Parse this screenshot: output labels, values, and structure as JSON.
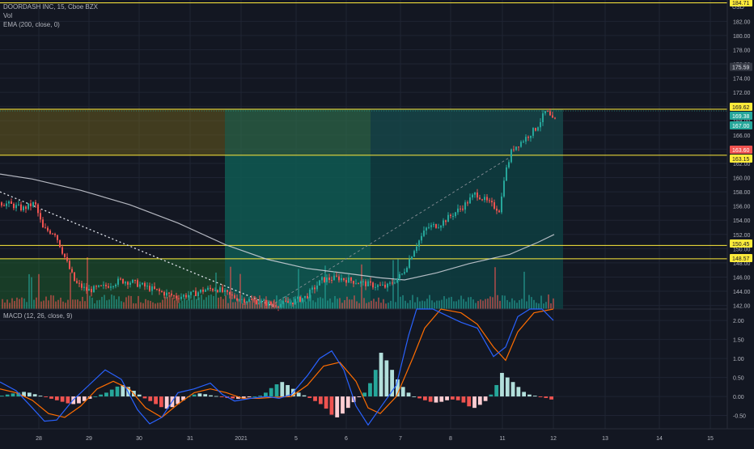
{
  "main_legend": {
    "symbol_line": "DOORDASH INC, 15, Cboe BZX",
    "vol_label": "Vol",
    "ema_label": "EMA (200, close, 0)"
  },
  "macd_legend": {
    "label": "MACD (12, 26, close, 9)"
  },
  "price_axis": {
    "currency": "USD",
    "ticks": [
      "182.00",
      "180.00",
      "178.00",
      "176.00",
      "174.00",
      "172.00",
      "170.00",
      "168.00",
      "166.00",
      "164.00",
      "162.00",
      "160.00",
      "158.00",
      "156.00",
      "154.00",
      "152.00",
      "150.00",
      "148.00",
      "146.00",
      "144.00",
      "142.00"
    ],
    "top_tag": "184.71",
    "last_price_tag": "175.59",
    "labels": [
      {
        "text": "169.62",
        "color": "#ffeb3b",
        "text_color": "#131722"
      },
      {
        "text": "169.38",
        "color": "#26a69a",
        "text_color": "#ffffff"
      },
      {
        "text": "167.00",
        "color": "#26a69a",
        "text_color": "#ffffff"
      },
      {
        "text": "163.60",
        "color": "#ef5350",
        "text_color": "#ffffff"
      },
      {
        "text": "163.15",
        "color": "#ffeb3b",
        "text_color": "#131722"
      },
      {
        "text": "150.45",
        "color": "#ffeb3b",
        "text_color": "#131722"
      },
      {
        "text": "148.57",
        "color": "#ffeb3b",
        "text_color": "#131722"
      }
    ]
  },
  "macd_axis": {
    "ticks": [
      "2.00",
      "1.50",
      "1.00",
      "0.50",
      "0.00",
      "-0.50"
    ]
  },
  "time_axis": {
    "labels": [
      "28",
      "29",
      "30",
      "31",
      "2021",
      "5",
      "6",
      "7",
      "8",
      "11",
      "12",
      "13",
      "14",
      "15"
    ]
  },
  "horizontal_levels": [
    169.62,
    163.15,
    150.45,
    148.57
  ],
  "colors": {
    "background": "#131722",
    "grid": "#1f2433",
    "up": "#26a69a",
    "down": "#ef5350",
    "ema": "#d1d4dc",
    "level_line": "#ffeb3b",
    "macd_line": "#2962ff",
    "signal_line": "#ff6d00",
    "hist_pos": "#b2dfdb",
    "hist_neg": "#ffcdd2"
  },
  "chart_data": {
    "type": "candlestick",
    "title": "DOORDASH INC, 15, Cboe BZX",
    "ylim": [
      141.5,
      185
    ],
    "macd_ylim": [
      -0.85,
      2.3
    ],
    "price_path": [
      [
        0,
        156.5
      ],
      [
        15,
        156.2
      ],
      [
        30,
        155.6
      ],
      [
        45,
        156.4
      ],
      [
        55,
        152.8
      ],
      [
        70,
        152.2
      ],
      [
        82,
        148.8
      ],
      [
        95,
        145.2
      ],
      [
        110,
        144.1
      ],
      [
        130,
        144.6
      ],
      [
        150,
        145.5
      ],
      [
        165,
        145.3
      ],
      [
        180,
        144.7
      ],
      [
        200,
        143.9
      ],
      [
        220,
        143.2
      ],
      [
        240,
        143.6
      ],
      [
        255,
        144.2
      ],
      [
        270,
        144.4
      ],
      [
        285,
        143.4
      ],
      [
        300,
        142.9
      ],
      [
        320,
        142.6
      ],
      [
        340,
        142.1
      ],
      [
        360,
        142.4
      ],
      [
        380,
        143.2
      ],
      [
        400,
        145.6
      ],
      [
        420,
        145.9
      ],
      [
        440,
        145.4
      ],
      [
        460,
        144.9
      ],
      [
        480,
        144.6
      ],
      [
        500,
        146.5
      ],
      [
        515,
        150.2
      ],
      [
        530,
        153.0
      ],
      [
        545,
        153.4
      ],
      [
        560,
        154.7
      ],
      [
        575,
        156.0
      ],
      [
        590,
        157.8
      ],
      [
        605,
        156.5
      ],
      [
        620,
        155.4
      ],
      [
        625,
        160.0
      ],
      [
        635,
        164.0
      ],
      [
        650,
        165.4
      ],
      [
        665,
        167.0
      ],
      [
        677,
        169.4
      ],
      [
        685,
        168.0
      ]
    ],
    "ema200_path": [
      [
        0,
        160.5
      ],
      [
        40,
        159.8
      ],
      [
        100,
        158.2
      ],
      [
        160,
        156.2
      ],
      [
        220,
        153.6
      ],
      [
        280,
        150.5
      ],
      [
        330,
        148.5
      ],
      [
        380,
        147.2
      ],
      [
        430,
        146.5
      ],
      [
        470,
        145.9
      ],
      [
        500,
        145.6
      ],
      [
        540,
        146.6
      ],
      [
        580,
        147.9
      ],
      [
        630,
        149.2
      ],
      [
        665,
        150.9
      ],
      [
        685,
        152.0
      ]
    ],
    "projection_line": [
      [
        335,
        142.0
      ],
      [
        635,
        163.2
      ]
    ],
    "descending_trendline": [
      [
        0,
        158.0
      ],
      [
        340,
        141.8
      ]
    ],
    "zones": [
      {
        "name": "upper-left",
        "x0": 0,
        "x1": 278,
        "top": 169.62,
        "bottom": 163.15,
        "fill": "#7a6a1c",
        "opacity": 0.45
      },
      {
        "name": "lower-left",
        "x0": 0,
        "x1": 278,
        "top": 148.57,
        "bottom": 141.5,
        "fill": "#1e6b2f",
        "opacity": 0.45
      },
      {
        "name": "long-target",
        "x0": 278,
        "x1": 458,
        "top": 169.62,
        "bottom": 163.15,
        "fill": "#2e6a48",
        "opacity": 0.7
      },
      {
        "name": "long-body",
        "x0": 278,
        "x1": 458,
        "top": 163.15,
        "bottom": 141.5,
        "fill": "#0f5a52",
        "opacity": 0.85
      },
      {
        "name": "long-target-right",
        "x0": 458,
        "x1": 696,
        "top": 169.62,
        "bottom": 163.15,
        "fill": "#17494b",
        "opacity": 0.8
      },
      {
        "name": "long-body-right",
        "x0": 458,
        "x1": 696,
        "top": 163.15,
        "bottom": 141.5,
        "fill": "#0e3e41",
        "opacity": 0.85
      }
    ],
    "macd_path": [
      [
        0,
        0.38
      ],
      [
        20,
        0.15
      ],
      [
        40,
        -0.3
      ],
      [
        55,
        -0.65
      ],
      [
        70,
        -0.62
      ],
      [
        90,
        -0.1
      ],
      [
        110,
        0.3
      ],
      [
        130,
        0.7
      ],
      [
        150,
        0.45
      ],
      [
        170,
        -0.35
      ],
      [
        185,
        -0.72
      ],
      [
        200,
        -0.55
      ],
      [
        220,
        0.1
      ],
      [
        240,
        0.2
      ],
      [
        260,
        0.35
      ],
      [
        275,
        0.05
      ],
      [
        290,
        -0.12
      ],
      [
        310,
        -0.05
      ],
      [
        330,
        0.0
      ],
      [
        345,
        -0.05
      ],
      [
        360,
        0.05
      ],
      [
        380,
        0.55
      ],
      [
        395,
        1.0
      ],
      [
        410,
        1.2
      ],
      [
        425,
        0.7
      ],
      [
        440,
        -0.25
      ],
      [
        455,
        -0.75
      ],
      [
        470,
        -0.3
      ],
      [
        490,
        0.3
      ],
      [
        505,
        1.6
      ],
      [
        515,
        2.3
      ],
      [
        535,
        2.3
      ],
      [
        555,
        2.1
      ],
      [
        570,
        1.95
      ],
      [
        590,
        1.8
      ],
      [
        610,
        1.05
      ],
      [
        625,
        1.3
      ],
      [
        640,
        2.1
      ],
      [
        655,
        2.3
      ],
      [
        670,
        2.3
      ],
      [
        684,
        2.0
      ]
    ],
    "signal_path": [
      [
        0,
        0.2
      ],
      [
        20,
        0.1
      ],
      [
        40,
        -0.1
      ],
      [
        60,
        -0.45
      ],
      [
        80,
        -0.55
      ],
      [
        100,
        -0.25
      ],
      [
        120,
        0.2
      ],
      [
        140,
        0.4
      ],
      [
        160,
        0.2
      ],
      [
        180,
        -0.3
      ],
      [
        200,
        -0.55
      ],
      [
        220,
        -0.2
      ],
      [
        240,
        0.1
      ],
      [
        260,
        0.2
      ],
      [
        280,
        0.1
      ],
      [
        300,
        -0.05
      ],
      [
        320,
        -0.05
      ],
      [
        340,
        -0.02
      ],
      [
        360,
        0.0
      ],
      [
        380,
        0.3
      ],
      [
        400,
        0.8
      ],
      [
        420,
        0.9
      ],
      [
        440,
        0.4
      ],
      [
        455,
        -0.3
      ],
      [
        470,
        -0.45
      ],
      [
        490,
        0.0
      ],
      [
        510,
        1.0
      ],
      [
        525,
        1.8
      ],
      [
        545,
        2.3
      ],
      [
        570,
        2.2
      ],
      [
        590,
        1.9
      ],
      [
        610,
        1.3
      ],
      [
        625,
        0.95
      ],
      [
        640,
        1.7
      ],
      [
        660,
        2.2
      ],
      [
        684,
        2.3
      ]
    ],
    "histogram_series": [
      0.02,
      0.05,
      0.08,
      0.1,
      0.12,
      0.1,
      0.06,
      0.02,
      -0.02,
      -0.06,
      -0.1,
      -0.14,
      -0.18,
      -0.2,
      -0.18,
      -0.12,
      -0.06,
      0.0,
      0.05,
      0.1,
      0.18,
      0.26,
      0.3,
      0.25,
      0.15,
      0.05,
      -0.05,
      -0.12,
      -0.2,
      -0.28,
      -0.32,
      -0.28,
      -0.2,
      -0.1,
      0.0,
      0.05,
      0.08,
      0.06,
      0.03,
      0.01,
      -0.02,
      -0.04,
      -0.05,
      -0.06,
      -0.04,
      -0.02,
      0.0,
      0.02,
      0.1,
      0.22,
      0.32,
      0.38,
      0.3,
      0.2,
      0.1,
      0.03,
      -0.04,
      -0.12,
      -0.2,
      -0.32,
      -0.48,
      -0.55,
      -0.45,
      -0.3,
      -0.15,
      -0.02,
      0.1,
      0.35,
      0.7,
      1.15,
      0.95,
      0.7,
      0.45,
      0.25,
      0.1,
      0.0,
      -0.05,
      -0.1,
      -0.14,
      -0.16,
      -0.14,
      -0.1,
      -0.08,
      -0.1,
      -0.16,
      -0.26,
      -0.3,
      -0.22,
      -0.12,
      0.05,
      0.3,
      0.62,
      0.5,
      0.38,
      0.25,
      0.12,
      0.05,
      0.02,
      -0.02,
      -0.04,
      -0.08
    ]
  }
}
